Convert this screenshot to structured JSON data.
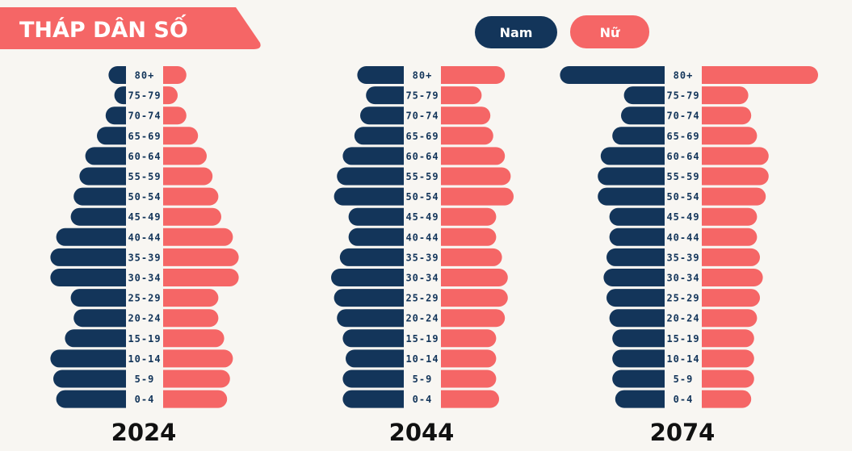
{
  "header": {
    "title": "THÁP DÂN SỐ"
  },
  "legend": {
    "male_label": "Nam",
    "female_label": "Nữ"
  },
  "colors": {
    "male": "#13355a",
    "female": "#f56666",
    "background": "#f8f6f2",
    "label_text": "#13355a",
    "year_text": "#111111"
  },
  "chart_data": [
    {
      "type": "bar",
      "orientation": "horizontal-population-pyramid",
      "title": "2024",
      "categories": [
        "80+",
        "75-79",
        "70-74",
        "65-69",
        "60-64",
        "55-59",
        "50-54",
        "45-49",
        "40-44",
        "35-39",
        "30-34",
        "25-29",
        "20-24",
        "15-19",
        "10-14",
        "5-9",
        "0-4"
      ],
      "series": [
        {
          "name": "Nam",
          "values": [
            0.6,
            0.4,
            0.7,
            1.0,
            1.4,
            1.6,
            1.8,
            1.9,
            2.4,
            2.6,
            2.6,
            1.9,
            1.8,
            2.1,
            2.6,
            2.5,
            2.4
          ]
        },
        {
          "name": "Nữ",
          "values": [
            0.8,
            0.5,
            0.8,
            1.2,
            1.5,
            1.7,
            1.9,
            2.0,
            2.4,
            2.6,
            2.6,
            1.9,
            1.9,
            2.1,
            2.4,
            2.3,
            2.2
          ]
        }
      ]
    },
    {
      "type": "bar",
      "orientation": "horizontal-population-pyramid",
      "title": "2044",
      "categories": [
        "80+",
        "75-79",
        "70-74",
        "65-69",
        "60-64",
        "55-59",
        "50-54",
        "45-49",
        "40-44",
        "35-39",
        "30-34",
        "25-29",
        "20-24",
        "15-19",
        "10-14",
        "5-9",
        "0-4"
      ],
      "series": [
        {
          "name": "Nam",
          "values": [
            1.6,
            1.3,
            1.5,
            1.7,
            2.1,
            2.3,
            2.4,
            1.9,
            1.9,
            2.2,
            2.5,
            2.4,
            2.3,
            2.1,
            2.0,
            2.1,
            2.1
          ]
        },
        {
          "name": "Nữ",
          "values": [
            2.2,
            1.4,
            1.7,
            1.8,
            2.2,
            2.4,
            2.5,
            1.9,
            1.9,
            2.1,
            2.3,
            2.3,
            2.2,
            1.9,
            1.9,
            1.9,
            2.0
          ]
        }
      ]
    },
    {
      "type": "bar",
      "orientation": "horizontal-population-pyramid",
      "title": "2074",
      "categories": [
        "80+",
        "75-79",
        "70-74",
        "65-69",
        "60-64",
        "55-59",
        "50-54",
        "45-49",
        "40-44",
        "35-39",
        "30-34",
        "25-29",
        "20-24",
        "15-19",
        "10-14",
        "5-9",
        "0-4"
      ],
      "series": [
        {
          "name": "Nam",
          "values": [
            3.6,
            1.4,
            1.5,
            1.8,
            2.2,
            2.3,
            2.3,
            1.9,
            1.9,
            2.0,
            2.1,
            2.0,
            1.9,
            1.8,
            1.8,
            1.8,
            1.7
          ]
        },
        {
          "name": "Nữ",
          "values": [
            4.0,
            1.6,
            1.7,
            1.9,
            2.3,
            2.3,
            2.2,
            1.9,
            1.9,
            2.0,
            2.1,
            2.0,
            1.9,
            1.8,
            1.8,
            1.8,
            1.7
          ]
        }
      ]
    }
  ]
}
